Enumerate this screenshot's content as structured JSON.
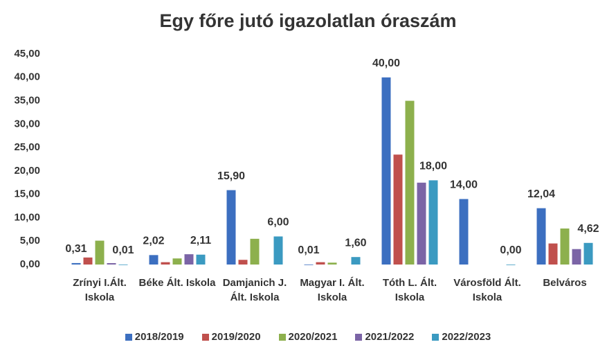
{
  "chart_data": {
    "type": "bar",
    "title": "Egy főre jutó igazolatlan óraszám",
    "categories": [
      "Zrínyi I.Ált. Iskola",
      "Béke Ált. Iskola",
      "Damjanich J. Ált. Iskola",
      "Magyar I. Ált. Iskola",
      "Tóth L. Ált. Iskola",
      "Városföld Ált. Iskola",
      "Belváros"
    ],
    "series": [
      {
        "name": "2018/2019",
        "color": "#3c6fc0",
        "values": [
          0.31,
          2.02,
          15.9,
          0.01,
          40,
          14,
          12.04
        ],
        "value_labels": [
          "0,31",
          "2,02",
          "15,90",
          "0,01",
          "40,00",
          "14,00",
          "12,04"
        ]
      },
      {
        "name": "2019/2020",
        "color": "#c0504d",
        "values": [
          1.5,
          0.5,
          1.0,
          0.5,
          23.5,
          null,
          4.5
        ]
      },
      {
        "name": "2020/2021",
        "color": "#8db04d",
        "values": [
          5.1,
          1.3,
          5.5,
          0.4,
          35,
          null,
          7.7
        ]
      },
      {
        "name": "2021/2022",
        "color": "#7b64a6",
        "values": [
          0.3,
          2.2,
          null,
          null,
          17.5,
          null,
          3.3
        ]
      },
      {
        "name": "2022/2023",
        "color": "#3b9ac1",
        "values": [
          0.01,
          2.11,
          6.0,
          1.6,
          18,
          0,
          4.62
        ],
        "value_labels": [
          "0,01",
          "2,11",
          "6,00",
          "1,60",
          "18,00",
          "0,00",
          "4,62"
        ]
      }
    ],
    "ylim": [
      0,
      45
    ],
    "yticks": [
      {
        "value": 0,
        "label": "0,00"
      },
      {
        "value": 5,
        "label": "5,00"
      },
      {
        "value": 10,
        "label": "10,00"
      },
      {
        "value": 15,
        "label": "15,00"
      },
      {
        "value": 20,
        "label": "20,00"
      },
      {
        "value": 25,
        "label": "25,00"
      },
      {
        "value": 30,
        "label": "30,00"
      },
      {
        "value": 35,
        "label": "35,00"
      },
      {
        "value": 40,
        "label": "40,00"
      },
      {
        "value": 45,
        "label": "45,00"
      }
    ],
    "grid": false
  }
}
